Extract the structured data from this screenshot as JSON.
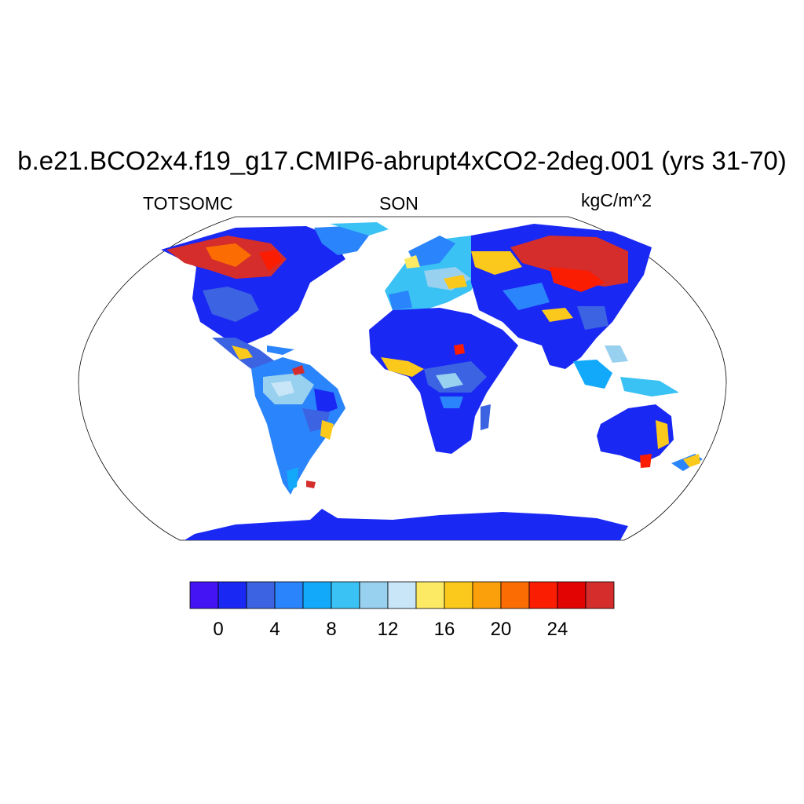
{
  "title": "b.e21.BCO2x4.f19_g17.CMIP6-abrupt4xCO2-2deg.001 (yrs 31-70)",
  "left_label": "TOTSOMC",
  "center_label": "SON",
  "right_label": "kgC/m^2",
  "colorbar": {
    "colors": [
      "#4414f4",
      "#1a28f4",
      "#3c63e2",
      "#2a84fb",
      "#12a9fb",
      "#3ac2f5",
      "#98d0ef",
      "#c8e6f7",
      "#fdea64",
      "#fbc91c",
      "#fb9f0b",
      "#fb6d02",
      "#fb1d02",
      "#e10403",
      "#d42d2c"
    ],
    "ticks": [
      "0",
      "4",
      "8",
      "12",
      "16",
      "20",
      "24"
    ]
  },
  "map": {
    "projection": "robinson",
    "variable": "TOTSOMC",
    "season": "SON",
    "units": "kgC/m^2",
    "regions": [
      {
        "name": "North America",
        "color_class": "0-4 with 24+ in Canada/Alaska"
      },
      {
        "name": "South America",
        "color_class": "4-16"
      },
      {
        "name": "Africa",
        "color_class": "0-2"
      },
      {
        "name": "Europe",
        "color_class": "6-16"
      },
      {
        "name": "Asia",
        "color_class": "0-28 with high values in Siberia"
      },
      {
        "name": "Australia",
        "color_class": "0-4"
      },
      {
        "name": "Antarctica",
        "color_class": "0-2"
      }
    ]
  }
}
